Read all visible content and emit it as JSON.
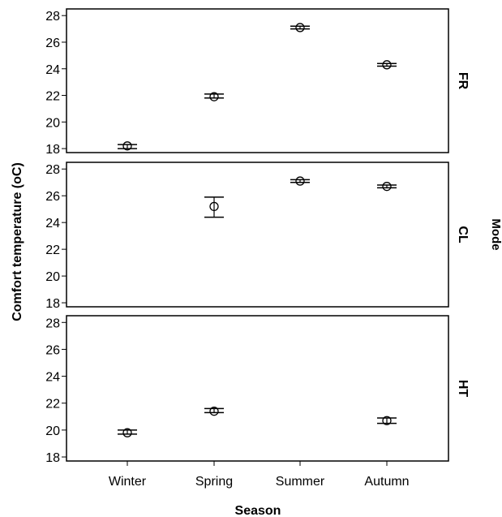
{
  "chart_data": {
    "type": "errorbar",
    "xlabel": "Season",
    "ylabel": "Comfort temperature (oC)",
    "facet_title": "Mode",
    "categories": [
      "Winter",
      "Spring",
      "Summer",
      "Autumn"
    ],
    "ylim": [
      17.7,
      28.5
    ],
    "yticks": [
      18,
      20,
      22,
      24,
      26,
      28
    ],
    "grid": false,
    "marker": "open-circle",
    "panels": [
      {
        "name": "FR",
        "points": [
          {
            "category": "Winter",
            "mean": 18.2,
            "lower": 18.0,
            "upper": 18.3
          },
          {
            "category": "Spring",
            "mean": 21.9,
            "lower": 21.8,
            "upper": 22.1
          },
          {
            "category": "Summer",
            "mean": 27.1,
            "lower": 27.0,
            "upper": 27.2
          },
          {
            "category": "Autumn",
            "mean": 24.3,
            "lower": 24.2,
            "upper": 24.4
          }
        ]
      },
      {
        "name": "CL",
        "points": [
          {
            "category": "Spring",
            "mean": 25.2,
            "lower": 24.4,
            "upper": 25.9
          },
          {
            "category": "Summer",
            "mean": 27.1,
            "lower": 27.0,
            "upper": 27.2
          },
          {
            "category": "Autumn",
            "mean": 26.7,
            "lower": 26.6,
            "upper": 26.8
          }
        ]
      },
      {
        "name": "HT",
        "points": [
          {
            "category": "Winter",
            "mean": 19.8,
            "lower": 19.7,
            "upper": 20.0
          },
          {
            "category": "Spring",
            "mean": 21.4,
            "lower": 21.3,
            "upper": 21.6
          },
          {
            "category": "Autumn",
            "mean": 20.7,
            "lower": 20.5,
            "upper": 20.9
          }
        ]
      }
    ]
  }
}
